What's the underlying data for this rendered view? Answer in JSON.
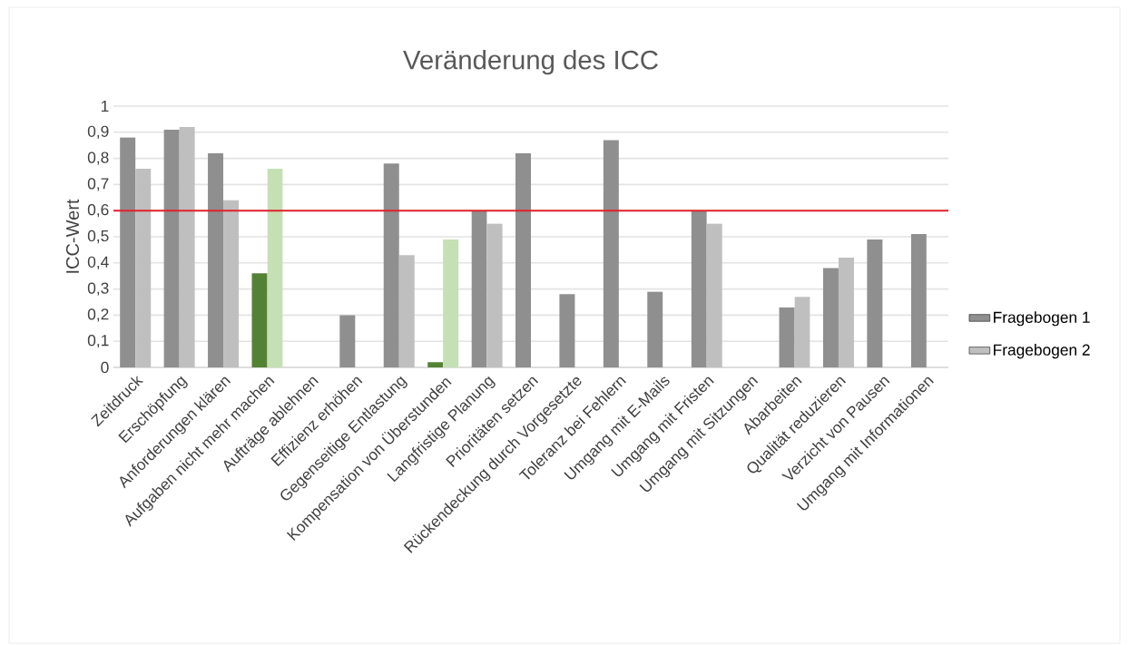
{
  "chart_data": {
    "type": "bar",
    "title": "Veränderung des ICC",
    "ylabel": "ICC-Wert",
    "categories": [
      "Zeitdruck",
      "Erschöpfung",
      "Anforderungen klären",
      "Aufgaben nicht mehr machen",
      "Aufträge ablehnen",
      "Effizienz erhöhen",
      "Gegenseitige Entlastung",
      "Kompensation von Überstunden",
      "Langfristige Planung",
      "Prioritäten setzen",
      "Rückendeckung durch Vorgesetzte",
      "Toleranz bei Fehlern",
      "Umgang mit E-Mails",
      "Umgang mit Fristen",
      "Umgang mit Sitzungen",
      "Abarbeiten",
      "Qualität reduzieren",
      "Verzicht von Pausen",
      "Umgang mit Informationen"
    ],
    "series": [
      {
        "name": "Fragebogen 1",
        "color": "#8f8f8f",
        "colors": [
          "#8f8f8f",
          "#8f8f8f",
          "#8f8f8f",
          "#548235",
          "#8f8f8f",
          "#8f8f8f",
          "#8f8f8f",
          "#548235",
          "#8f8f8f",
          "#8f8f8f",
          "#8f8f8f",
          "#8f8f8f",
          "#8f8f8f",
          "#8f8f8f",
          "#8f8f8f",
          "#8f8f8f",
          "#8f8f8f",
          "#8f8f8f",
          "#8f8f8f"
        ],
        "values": [
          0.88,
          0.91,
          0.82,
          0.36,
          null,
          0.2,
          0.78,
          0.02,
          0.6,
          0.82,
          0.28,
          0.87,
          0.29,
          0.6,
          null,
          0.23,
          0.38,
          0.49,
          0.51
        ]
      },
      {
        "name": "Fragebogen 2",
        "color": "#bfbfbf",
        "colors": [
          "#bfbfbf",
          "#bfbfbf",
          "#bfbfbf",
          "#c5e0b4",
          "#bfbfbf",
          "#bfbfbf",
          "#bfbfbf",
          "#c5e0b4",
          "#bfbfbf",
          "#bfbfbf",
          "#bfbfbf",
          "#bfbfbf",
          "#bfbfbf",
          "#bfbfbf",
          "#bfbfbf",
          "#bfbfbf",
          "#bfbfbf",
          "#bfbfbf",
          "#bfbfbf"
        ],
        "values": [
          0.76,
          0.92,
          0.64,
          0.76,
          null,
          null,
          0.43,
          0.49,
          0.55,
          null,
          null,
          null,
          null,
          0.55,
          null,
          0.27,
          0.42,
          null,
          null
        ]
      }
    ],
    "ylim": [
      0,
      1
    ],
    "yticks": [
      0,
      {
        "value": 0.1,
        "label": "0,1"
      },
      {
        "value": 0.2,
        "label": "0,2"
      },
      {
        "value": 0.3,
        "label": "0,3"
      },
      {
        "value": 0.4,
        "label": "0,4"
      },
      {
        "value": 0.5,
        "label": "0,5"
      },
      {
        "value": 0.6,
        "label": "0,6"
      },
      {
        "value": 0.7,
        "label": "0,7"
      },
      {
        "value": 0.8,
        "label": "0,8"
      },
      {
        "value": 0.9,
        "label": "0,9"
      },
      1
    ],
    "ref_lines": [
      {
        "axis": "y",
        "value": 0.6,
        "color": "#e0202a"
      }
    ],
    "grid": "y",
    "legend": "right"
  }
}
